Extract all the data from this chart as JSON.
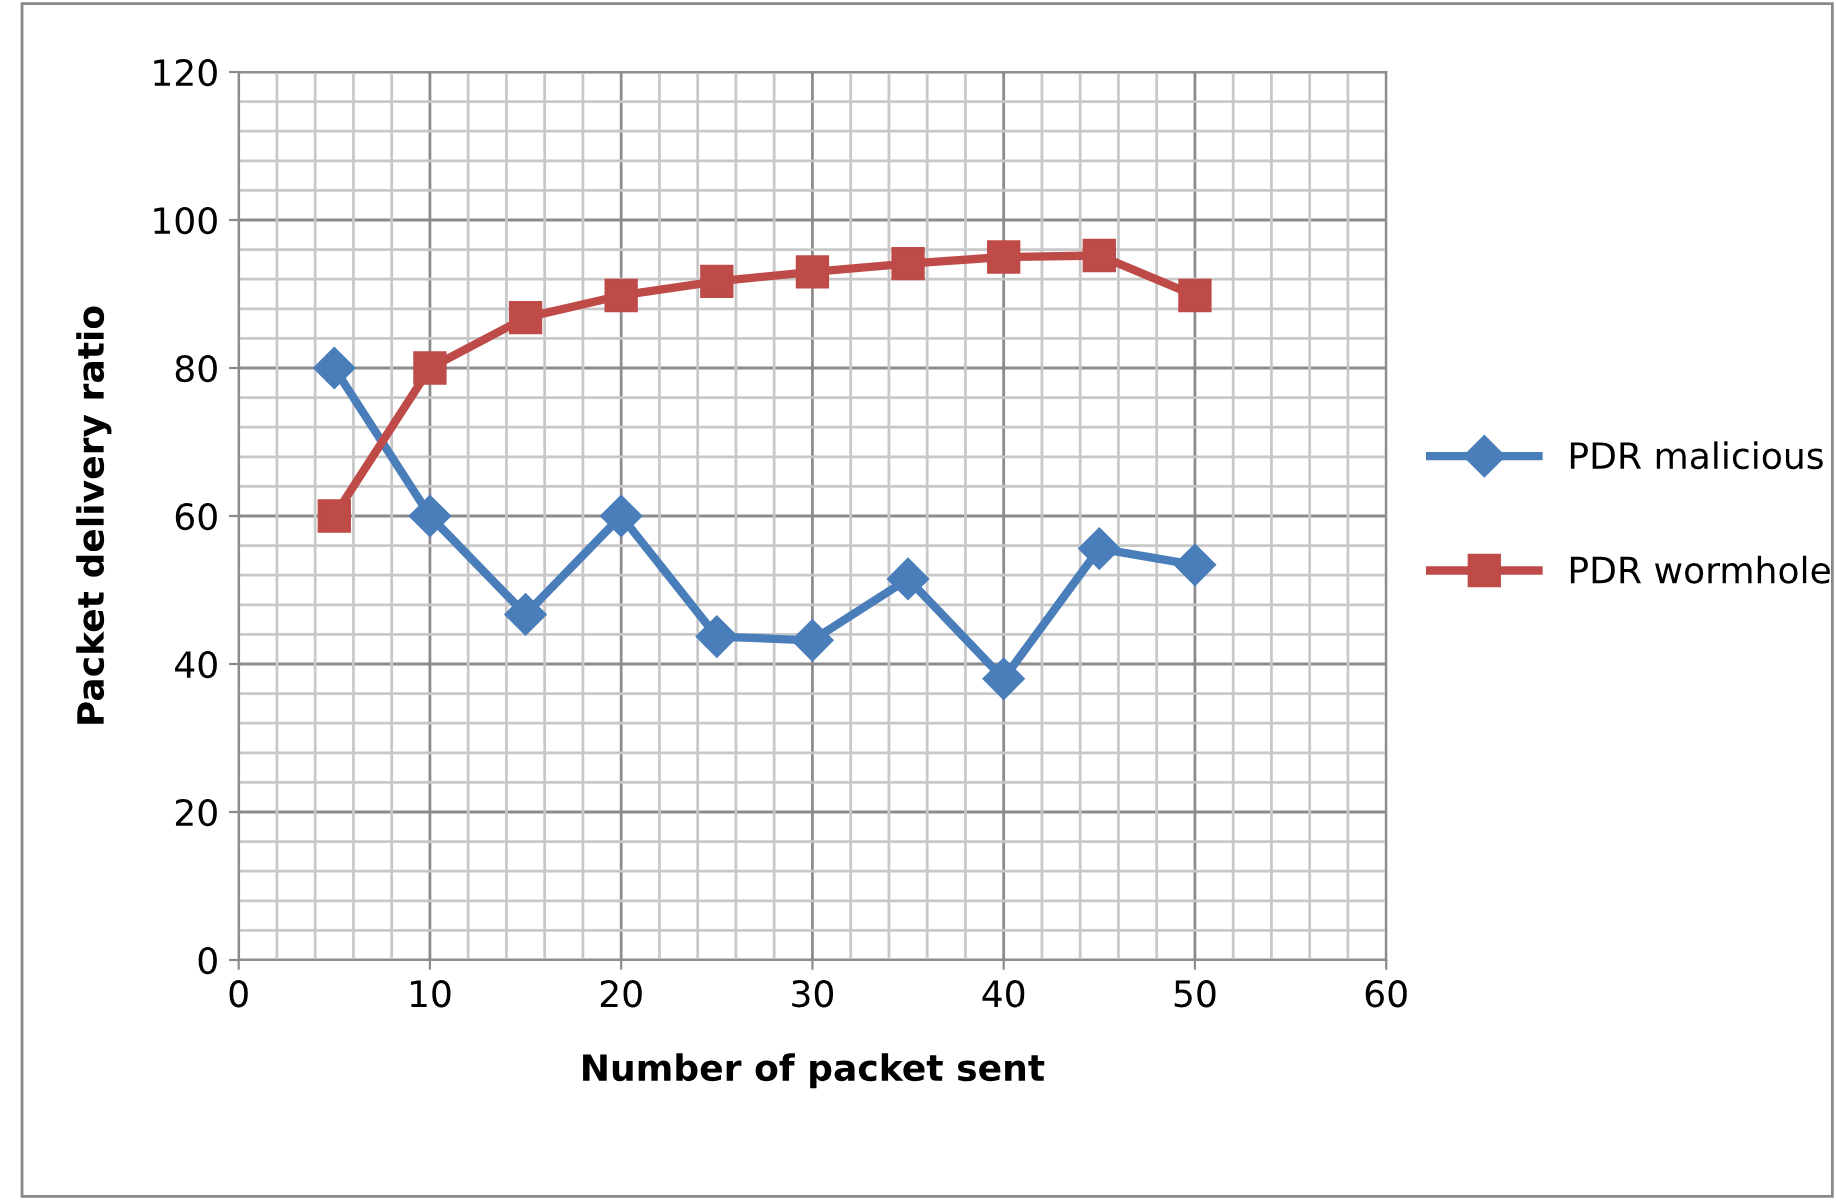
{
  "chart_data": {
    "type": "line",
    "xlabel": "Number of packet sent",
    "ylabel": "Packet delivery ratio",
    "x": [
      5,
      10,
      15,
      20,
      25,
      30,
      35,
      40,
      45,
      50
    ],
    "series": [
      {
        "name": "PDR malicious",
        "color": "#4a7ebb",
        "marker": "diamond",
        "values": [
          80,
          60,
          46.7,
          60,
          43.7,
          43.2,
          51.5,
          38,
          55.6,
          53.4
        ]
      },
      {
        "name": "PDR wormhole",
        "color": "#be4b48",
        "marker": "square",
        "values": [
          60,
          80,
          86.8,
          89.8,
          91.7,
          93,
          94.1,
          95,
          95.2,
          89.8
        ]
      }
    ],
    "xlim": [
      0,
      60
    ],
    "xticks": [
      0,
      10,
      20,
      30,
      40,
      50,
      60
    ],
    "ylim": [
      0,
      120
    ],
    "yticks": [
      0,
      20,
      40,
      60,
      80,
      100,
      120
    ],
    "grid": true,
    "legend": "right"
  }
}
